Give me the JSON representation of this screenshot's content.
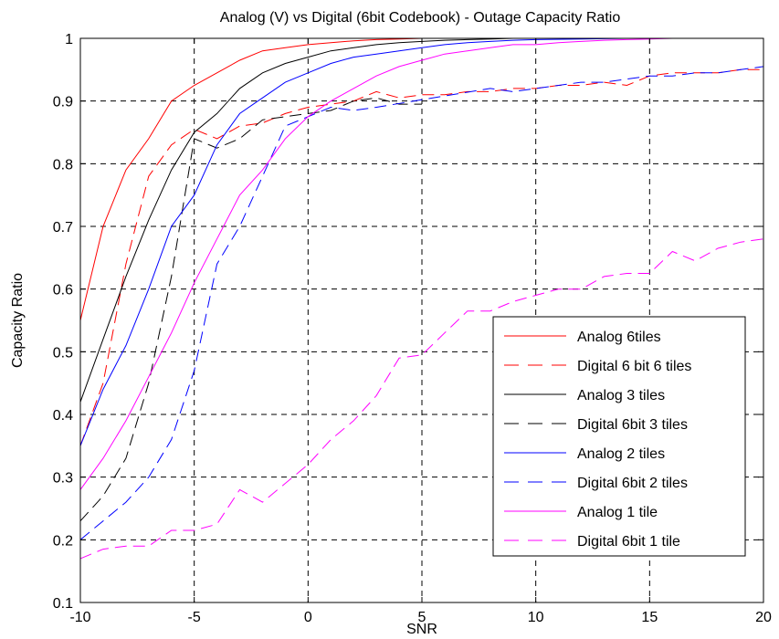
{
  "chart_data": {
    "type": "line",
    "title": "Analog (V) vs Digital (6bit Codebook) - Outage Capacity Ratio",
    "xlabel": "SNR",
    "ylabel": "Capacity Ratio",
    "xlim": [
      -10,
      20
    ],
    "ylim": [
      0.1,
      1
    ],
    "xticks": [
      -10,
      -5,
      0,
      5,
      10,
      15,
      20
    ],
    "yticks": [
      0.1,
      0.2,
      0.3,
      0.4,
      0.5,
      0.6,
      0.7,
      0.8,
      0.9,
      1
    ],
    "grid": true,
    "legend_position": "bottom-right",
    "series": [
      {
        "name": "Analog 6tiles",
        "color": "#ff0000",
        "dash": "solid",
        "x": [
          -10,
          -9,
          -8,
          -7,
          -6,
          -5,
          -4,
          -3,
          -2,
          -1,
          0,
          1,
          2,
          3,
          4,
          5,
          6,
          7,
          8,
          9,
          10,
          12,
          14,
          16,
          18,
          20
        ],
        "y": [
          0.55,
          0.7,
          0.79,
          0.84,
          0.9,
          0.925,
          0.945,
          0.965,
          0.98,
          0.985,
          0.99,
          0.993,
          0.996,
          0.998,
          0.999,
          1,
          1,
          1,
          1,
          1,
          1,
          1,
          1,
          1,
          1,
          1
        ]
      },
      {
        "name": "Digital 6 bit 6 tiles",
        "color": "#ff0000",
        "dash": "dashed",
        "x": [
          -10,
          -9,
          -8,
          -7,
          -6,
          -5,
          -4,
          -3,
          -2,
          -1,
          0,
          1,
          2,
          3,
          4,
          5,
          6,
          7,
          8,
          9,
          10,
          11,
          12,
          13,
          14,
          15,
          16,
          17,
          18,
          19,
          20
        ],
        "y": [
          0.35,
          0.45,
          0.64,
          0.78,
          0.83,
          0.855,
          0.84,
          0.86,
          0.865,
          0.88,
          0.89,
          0.895,
          0.9,
          0.915,
          0.905,
          0.91,
          0.91,
          0.915,
          0.915,
          0.92,
          0.92,
          0.925,
          0.925,
          0.93,
          0.925,
          0.94,
          0.945,
          0.945,
          0.945,
          0.95,
          0.95
        ]
      },
      {
        "name": "Analog 3 tiles",
        "color": "#000000",
        "dash": "solid",
        "x": [
          -10,
          -9,
          -8,
          -7,
          -6,
          -5,
          -4,
          -3,
          -2,
          -1,
          0,
          1,
          2,
          3,
          4,
          5,
          6,
          7,
          8,
          9,
          10,
          12,
          14,
          16,
          18,
          20
        ],
        "y": [
          0.42,
          0.52,
          0.62,
          0.71,
          0.79,
          0.85,
          0.88,
          0.92,
          0.945,
          0.96,
          0.97,
          0.98,
          0.985,
          0.99,
          0.993,
          0.995,
          0.997,
          0.998,
          0.999,
          1,
          1,
          1,
          1,
          1,
          1,
          1
        ]
      },
      {
        "name": "Digital 6bit 3 tiles",
        "color": "#000000",
        "dash": "dashed",
        "x": [
          -10,
          -9,
          -8,
          -7,
          -6,
          -5,
          -4,
          -3,
          -2,
          -1,
          0,
          1,
          2,
          3,
          4,
          5
        ],
        "y": [
          0.23,
          0.27,
          0.33,
          0.45,
          0.62,
          0.84,
          0.825,
          0.84,
          0.87,
          0.875,
          0.88,
          0.885,
          0.9,
          0.905,
          0.895,
          0.895
        ]
      },
      {
        "name": "Analog 2 tiles",
        "color": "#0000ff",
        "dash": "solid",
        "x": [
          -10,
          -9,
          -8,
          -7,
          -6,
          -5,
          -4,
          -3,
          -2,
          -1,
          0,
          1,
          2,
          3,
          4,
          5,
          6,
          7,
          8,
          9,
          10,
          12,
          14,
          16,
          18,
          20
        ],
        "y": [
          0.35,
          0.44,
          0.51,
          0.6,
          0.7,
          0.75,
          0.83,
          0.88,
          0.905,
          0.93,
          0.945,
          0.96,
          0.97,
          0.975,
          0.98,
          0.985,
          0.99,
          0.993,
          0.995,
          0.997,
          0.998,
          0.999,
          1,
          1,
          1,
          1
        ]
      },
      {
        "name": "Digital 6bit 2 tiles",
        "color": "#0000ff",
        "dash": "dashed",
        "x": [
          -10,
          -9,
          -8,
          -7,
          -6,
          -5,
          -4,
          -3,
          -2,
          -1,
          0,
          1,
          2,
          3,
          8,
          9,
          10,
          11,
          12,
          13,
          14,
          15,
          16,
          17,
          18,
          19,
          20
        ],
        "y": [
          0.2,
          0.23,
          0.26,
          0.3,
          0.36,
          0.47,
          0.64,
          0.7,
          0.78,
          0.86,
          0.875,
          0.89,
          0.885,
          0.89,
          0.92,
          0.915,
          0.92,
          0.925,
          0.93,
          0.93,
          0.935,
          0.94,
          0.94,
          0.945,
          0.945,
          0.95,
          0.955
        ]
      },
      {
        "name": "Analog 1 tile",
        "color": "#ff00ff",
        "dash": "solid",
        "x": [
          -10,
          -9,
          -8,
          -7,
          -6,
          -5,
          -4,
          -3,
          -2,
          -1,
          0,
          1,
          2,
          3,
          4,
          5,
          6,
          7,
          8,
          9,
          10,
          11,
          12,
          13,
          14,
          15,
          16,
          17,
          18,
          19,
          20
        ],
        "y": [
          0.28,
          0.33,
          0.39,
          0.46,
          0.53,
          0.61,
          0.68,
          0.75,
          0.79,
          0.84,
          0.875,
          0.9,
          0.92,
          0.94,
          0.955,
          0.965,
          0.975,
          0.98,
          0.985,
          0.99,
          0.99,
          0.993,
          0.995,
          0.997,
          0.998,
          0.999,
          1,
          1,
          1,
          1,
          1
        ]
      },
      {
        "name": "Digital 6bit 1 tile",
        "color": "#ff00ff",
        "dash": "dashed",
        "x": [
          -10,
          -9,
          -8,
          -7,
          -6,
          -5,
          -4,
          -3,
          -2,
          -1,
          0,
          1,
          2,
          3,
          4,
          5,
          6,
          7,
          8,
          9,
          10,
          11,
          12,
          13,
          14,
          15,
          16,
          17,
          18,
          19,
          20
        ],
        "y": [
          0.17,
          0.185,
          0.19,
          0.19,
          0.215,
          0.215,
          0.225,
          0.28,
          0.26,
          0.29,
          0.32,
          0.36,
          0.39,
          0.43,
          0.49,
          0.495,
          0.53,
          0.565,
          0.565,
          0.58,
          0.59,
          0.6,
          0.6,
          0.62,
          0.625,
          0.625,
          0.66,
          0.645,
          0.665,
          0.675,
          0.68
        ]
      }
    ]
  }
}
